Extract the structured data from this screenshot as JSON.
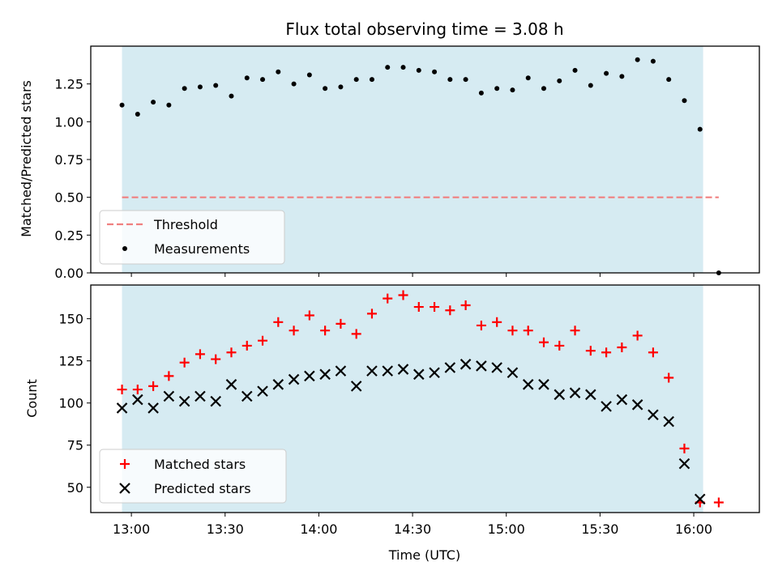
{
  "chart_data": {
    "type": "scatter",
    "title": "Flux total observing time = 3.08 h",
    "xlabel": "Time (UTC)",
    "x_ticks": [
      "13:00",
      "13:30",
      "14:00",
      "14:30",
      "15:00",
      "15:30",
      "16:00"
    ],
    "shaded_interval": [
      "12:57",
      "16:03"
    ],
    "colors": {
      "shading": "#add8e6",
      "threshold": "#f08080",
      "matched": "#ff0000",
      "predicted": "#000000",
      "measurements": "#000000"
    },
    "panels": [
      {
        "ylabel": "Matched/Predicted stars",
        "ylim": [
          0,
          1.5
        ],
        "y_ticks": [
          "0.00",
          "0.25",
          "0.50",
          "0.75",
          "1.00",
          "1.25"
        ],
        "legend_position": "lower left",
        "threshold": {
          "name": "Threshold",
          "value": 0.5,
          "x_range": [
            "12:57",
            "16:08"
          ],
          "style": "dashed"
        },
        "series": [
          {
            "name": "Measurements",
            "marker": "dot",
            "points": [
              [
                "12:57",
                1.11
              ],
              [
                "13:02",
                1.05
              ],
              [
                "13:07",
                1.13
              ],
              [
                "13:12",
                1.11
              ],
              [
                "13:17",
                1.22
              ],
              [
                "13:22",
                1.23
              ],
              [
                "13:27",
                1.24
              ],
              [
                "13:32",
                1.17
              ],
              [
                "13:37",
                1.29
              ],
              [
                "13:42",
                1.28
              ],
              [
                "13:47",
                1.33
              ],
              [
                "13:52",
                1.25
              ],
              [
                "13:57",
                1.31
              ],
              [
                "14:02",
                1.22
              ],
              [
                "14:07",
                1.23
              ],
              [
                "14:12",
                1.28
              ],
              [
                "14:17",
                1.28
              ],
              [
                "14:22",
                1.36
              ],
              [
                "14:27",
                1.36
              ],
              [
                "14:32",
                1.34
              ],
              [
                "14:37",
                1.33
              ],
              [
                "14:42",
                1.28
              ],
              [
                "14:47",
                1.28
              ],
              [
                "14:52",
                1.19
              ],
              [
                "14:57",
                1.22
              ],
              [
                "15:02",
                1.21
              ],
              [
                "15:07",
                1.29
              ],
              [
                "15:12",
                1.22
              ],
              [
                "15:17",
                1.27
              ],
              [
                "15:22",
                1.34
              ],
              [
                "15:27",
                1.24
              ],
              [
                "15:32",
                1.32
              ],
              [
                "15:37",
                1.3
              ],
              [
                "15:42",
                1.41
              ],
              [
                "15:47",
                1.4
              ],
              [
                "15:52",
                1.28
              ],
              [
                "15:57",
                1.14
              ],
              [
                "16:02",
                0.95
              ],
              [
                "16:08",
                0.0
              ]
            ]
          }
        ]
      },
      {
        "ylabel": "Count",
        "ylim": [
          35,
          170
        ],
        "y_ticks": [
          "50",
          "75",
          "100",
          "125",
          "150"
        ],
        "legend_position": "lower left",
        "series": [
          {
            "name": "Matched stars",
            "marker": "plus",
            "points": [
              [
                "12:57",
                108
              ],
              [
                "13:02",
                108
              ],
              [
                "13:07",
                110
              ],
              [
                "13:12",
                116
              ],
              [
                "13:17",
                124
              ],
              [
                "13:22",
                129
              ],
              [
                "13:27",
                126
              ],
              [
                "13:32",
                130
              ],
              [
                "13:37",
                134
              ],
              [
                "13:42",
                137
              ],
              [
                "13:47",
                148
              ],
              [
                "13:52",
                143
              ],
              [
                "13:57",
                152
              ],
              [
                "14:02",
                143
              ],
              [
                "14:07",
                147
              ],
              [
                "14:12",
                141
              ],
              [
                "14:17",
                153
              ],
              [
                "14:22",
                162
              ],
              [
                "14:27",
                164
              ],
              [
                "14:32",
                157
              ],
              [
                "14:37",
                157
              ],
              [
                "14:42",
                155
              ],
              [
                "14:47",
                158
              ],
              [
                "14:52",
                146
              ],
              [
                "14:57",
                148
              ],
              [
                "15:02",
                143
              ],
              [
                "15:07",
                143
              ],
              [
                "15:12",
                136
              ],
              [
                "15:17",
                134
              ],
              [
                "15:22",
                143
              ],
              [
                "15:27",
                131
              ],
              [
                "15:32",
                130
              ],
              [
                "15:37",
                133
              ],
              [
                "15:42",
                140
              ],
              [
                "15:47",
                130
              ],
              [
                "15:52",
                115
              ],
              [
                "15:57",
                73
              ],
              [
                "16:02",
                41
              ],
              [
                "16:08",
                41
              ]
            ]
          },
          {
            "name": "Predicted stars",
            "marker": "x",
            "points": [
              [
                "12:57",
                97
              ],
              [
                "13:02",
                102
              ],
              [
                "13:07",
                97
              ],
              [
                "13:12",
                104
              ],
              [
                "13:17",
                101
              ],
              [
                "13:22",
                104
              ],
              [
                "13:27",
                101
              ],
              [
                "13:32",
                111
              ],
              [
                "13:37",
                104
              ],
              [
                "13:42",
                107
              ],
              [
                "13:47",
                111
              ],
              [
                "13:52",
                114
              ],
              [
                "13:57",
                116
              ],
              [
                "14:02",
                117
              ],
              [
                "14:07",
                119
              ],
              [
                "14:12",
                110
              ],
              [
                "14:17",
                119
              ],
              [
                "14:22",
                119
              ],
              [
                "14:27",
                120
              ],
              [
                "14:32",
                117
              ],
              [
                "14:37",
                118
              ],
              [
                "14:42",
                121
              ],
              [
                "14:47",
                123
              ],
              [
                "14:52",
                122
              ],
              [
                "14:57",
                121
              ],
              [
                "15:02",
                118
              ],
              [
                "15:07",
                111
              ],
              [
                "15:12",
                111
              ],
              [
                "15:17",
                105
              ],
              [
                "15:22",
                106
              ],
              [
                "15:27",
                105
              ],
              [
                "15:32",
                98
              ],
              [
                "15:37",
                102
              ],
              [
                "15:42",
                99
              ],
              [
                "15:47",
                93
              ],
              [
                "15:52",
                89
              ],
              [
                "15:57",
                64
              ],
              [
                "16:02",
                43
              ]
            ]
          }
        ]
      }
    ]
  }
}
